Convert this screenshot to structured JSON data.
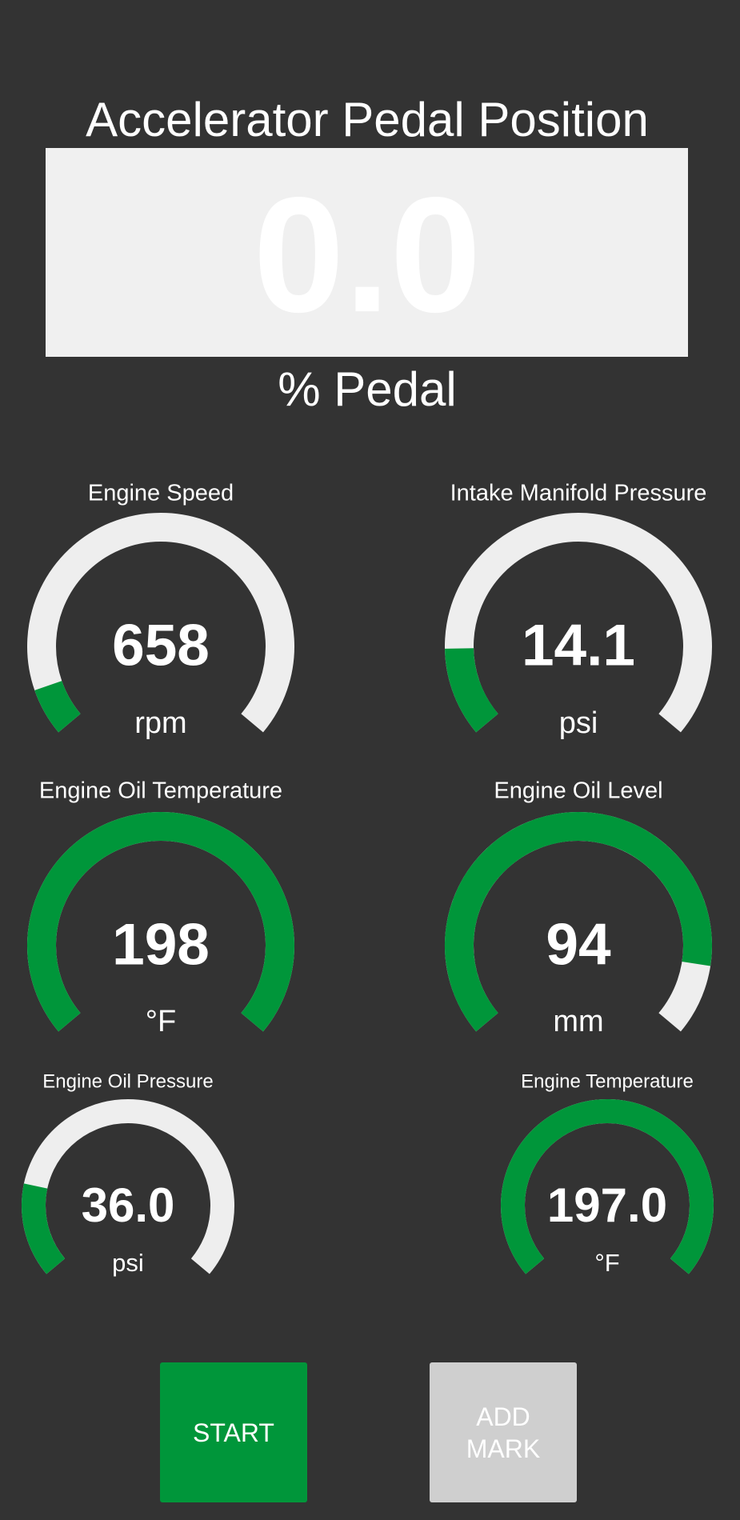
{
  "header": {
    "title": "Accelerator Pedal Position",
    "value": "0.0",
    "unit": "% Pedal"
  },
  "gauges": [
    {
      "label": "Engine Speed",
      "value": "658",
      "unit": "rpm",
      "level": 0.08
    },
    {
      "label": "Intake Manifold Pressure",
      "value": "14.1",
      "unit": "psi",
      "level": 0.15
    },
    {
      "label": "Engine Oil Temperature",
      "value": "198",
      "unit": "°F",
      "level": 1
    },
    {
      "label": "Engine Oil Level",
      "value": "94",
      "unit": "mm",
      "level": 0.88
    },
    {
      "label": "Engine Oil Pressure",
      "value": "36.0",
      "unit": "psi",
      "level": 0.2
    },
    {
      "label": "Engine Temperature",
      "value": "197.0",
      "unit": "°F",
      "level": 1
    }
  ],
  "buttons": [
    "START",
    "ADD MARK"
  ]
}
